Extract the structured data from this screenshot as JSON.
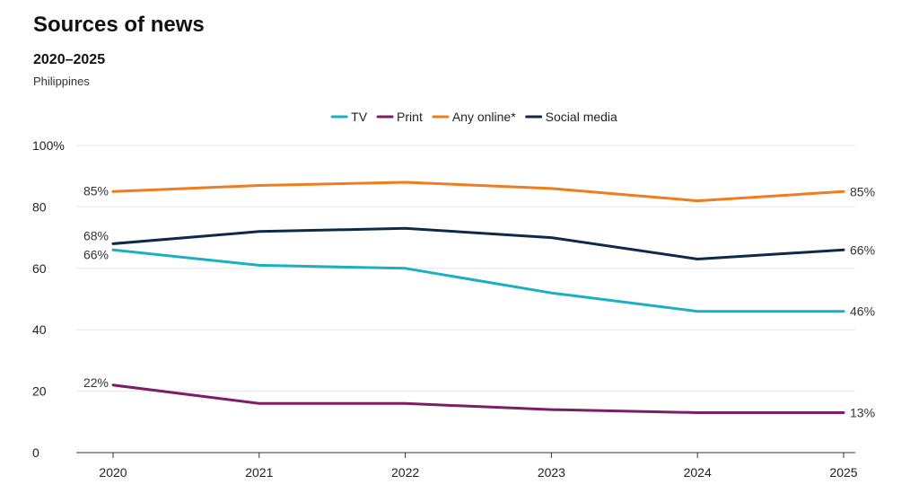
{
  "header": {
    "title": "Sources of news",
    "subtitle": "2020–2025",
    "note": "Philippines"
  },
  "chart_data": {
    "type": "line",
    "x": [
      "2020",
      "2021",
      "2022",
      "2023",
      "2024",
      "2025"
    ],
    "ylim": [
      0,
      100
    ],
    "yticks": [
      0,
      20,
      40,
      60,
      80,
      100
    ],
    "ytick_labels": [
      "0",
      "20",
      "40",
      "60",
      "80",
      "100%"
    ],
    "grid": true,
    "legend_position": "top-center",
    "series": [
      {
        "name": "TV",
        "color": "#1aafc2",
        "values": [
          66,
          61,
          60,
          52,
          46,
          46
        ],
        "start_label": "66%",
        "end_label": "46%"
      },
      {
        "name": "Print",
        "color": "#7e1d66",
        "values": [
          22,
          16,
          16,
          14,
          13,
          13
        ],
        "start_label": "22%",
        "end_label": "13%"
      },
      {
        "name": "Any online*",
        "color": "#f07c1d",
        "values": [
          85,
          87,
          88,
          86,
          82,
          85
        ],
        "start_label": "85%",
        "end_label": "85%"
      },
      {
        "name": "Social media",
        "color": "#0e2a4a",
        "values": [
          68,
          72,
          73,
          70,
          63,
          66
        ],
        "start_label": "68%",
        "end_label": "66%"
      }
    ]
  }
}
